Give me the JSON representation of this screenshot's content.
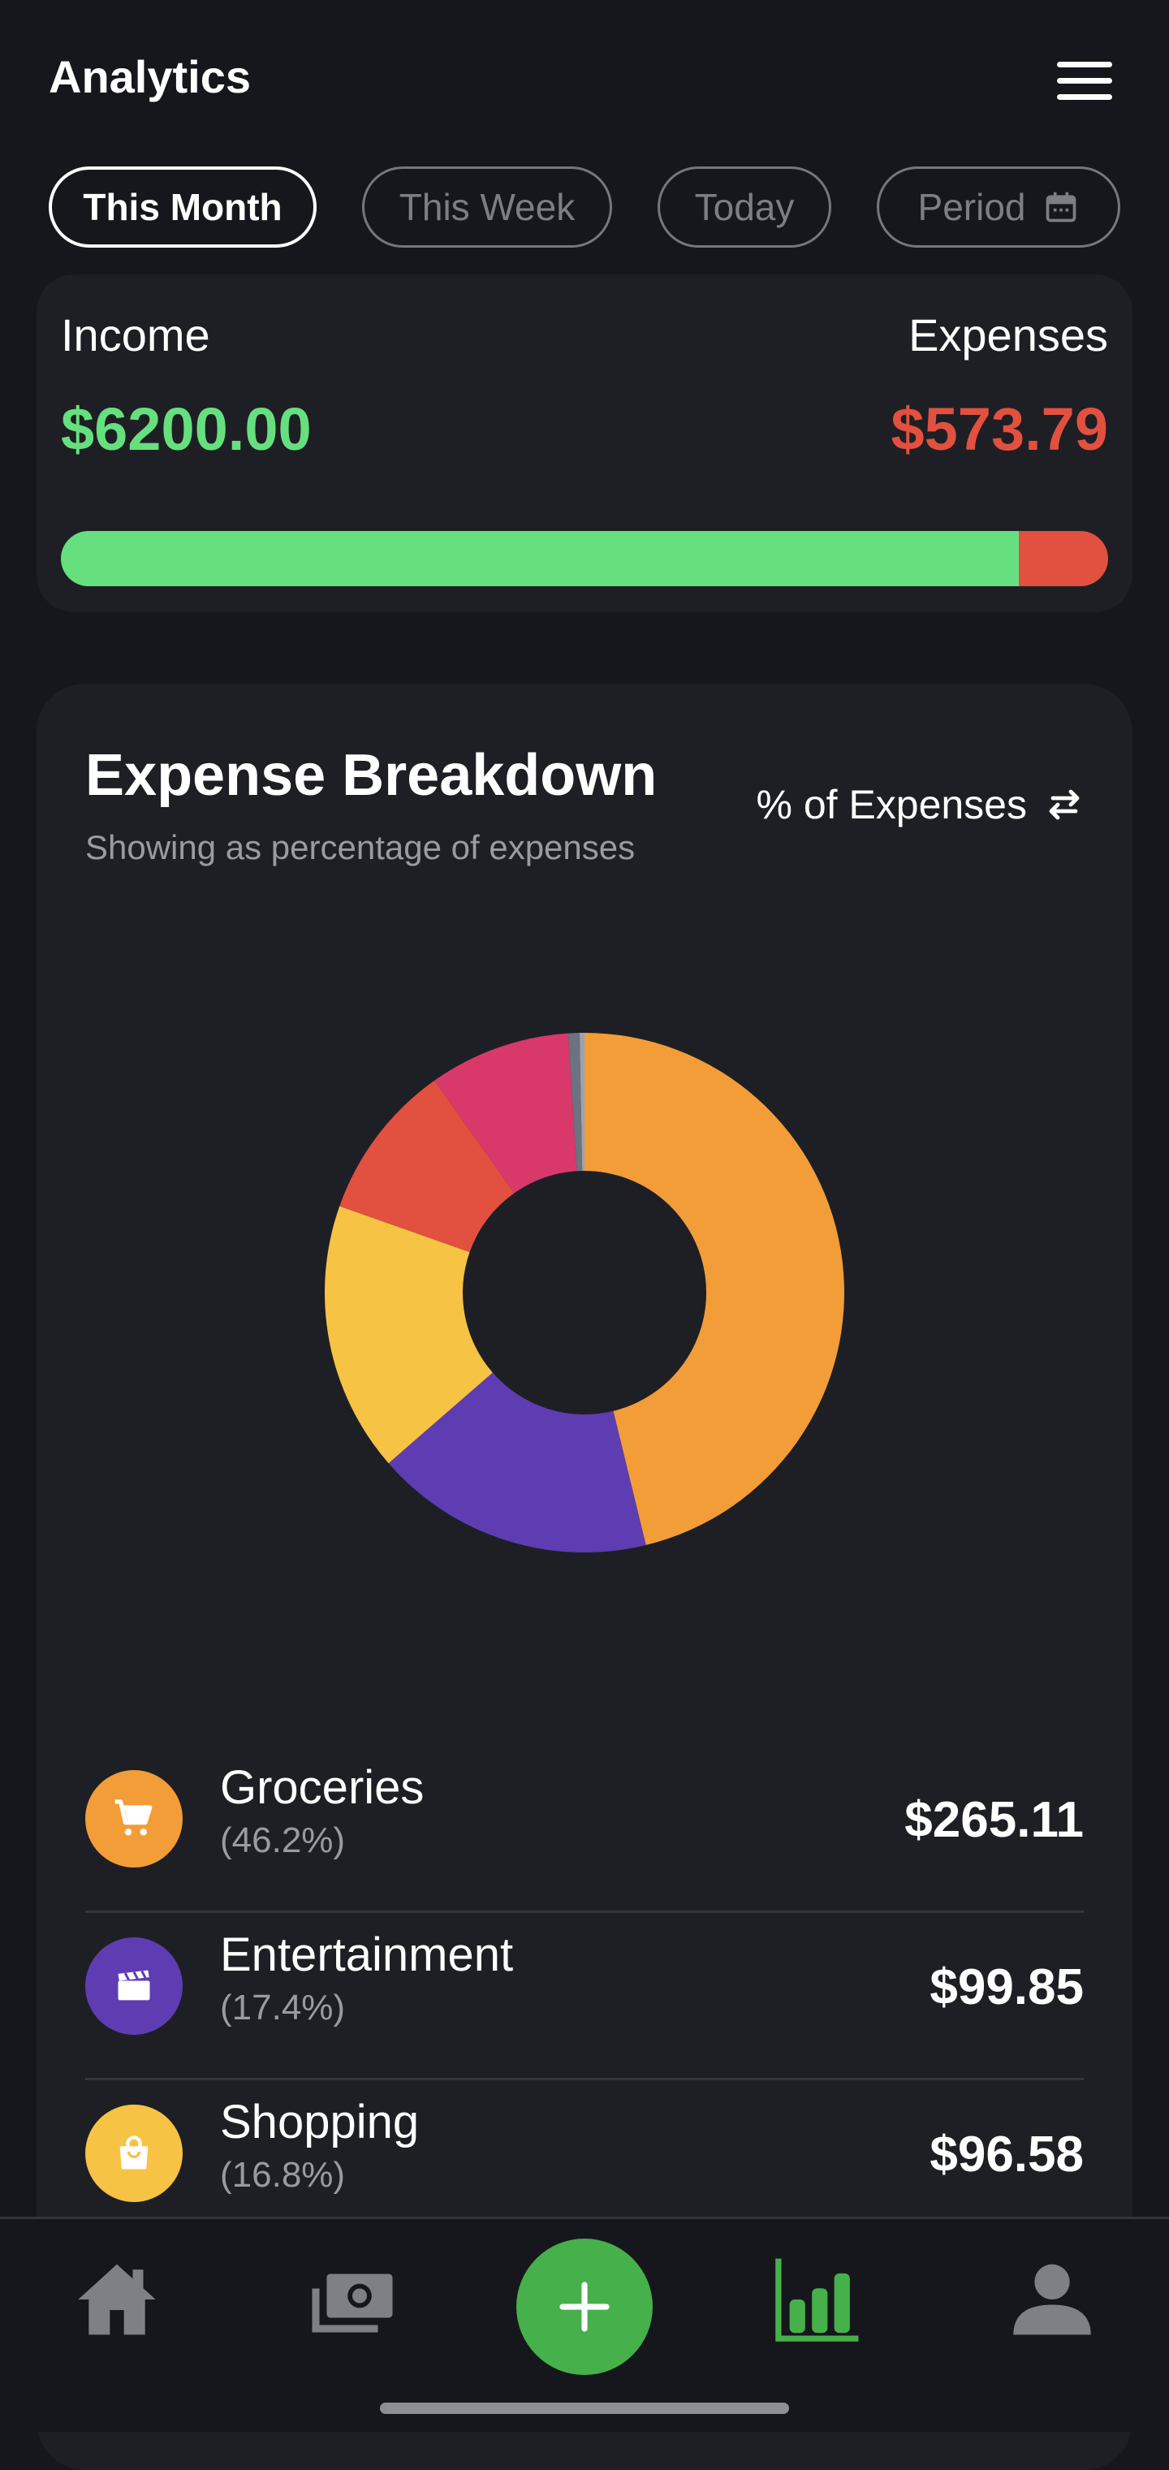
{
  "header": {
    "title": "Analytics",
    "menu_icon": "hamburger-menu-icon"
  },
  "filters": [
    {
      "label": "This Month",
      "active": true
    },
    {
      "label": "This Week",
      "active": false
    },
    {
      "label": "Today",
      "active": false
    },
    {
      "label": "Period",
      "active": false,
      "icon": "calendar-icon"
    }
  ],
  "summary": {
    "income_label": "Income",
    "income_value": "$6200.00",
    "expenses_label": "Expenses",
    "expenses_value": "$573.79",
    "income_share": 0.915,
    "colors": {
      "income": "#66e07e",
      "expenses": "#e2503f"
    }
  },
  "breakdown": {
    "title": "Expense Breakdown",
    "subtitle": "Showing as percentage of expenses",
    "toggle_label": "% of Expenses",
    "toggle_icon": "swap-arrows-icon"
  },
  "chart_data": {
    "type": "pie",
    "donut": true,
    "slices": [
      {
        "name": "Groceries",
        "value": 46.2,
        "color": "#f29d38"
      },
      {
        "name": "Entertainment",
        "value": 17.4,
        "color": "#5e3db3"
      },
      {
        "name": "Shopping",
        "value": 16.8,
        "color": "#f6c344"
      },
      {
        "name": "",
        "value": 9.8,
        "color": "#e2503f"
      },
      {
        "name": "",
        "value": 8.8,
        "color": "#d9386b"
      },
      {
        "name": "",
        "value": 0.7,
        "color": "#6b7280"
      },
      {
        "name": "",
        "value": 0.3,
        "color": "#9ca3af"
      }
    ]
  },
  "categories": [
    {
      "name": "Groceries",
      "percent": "(46.2%)",
      "amount": "$265.11",
      "color": "#f29d38",
      "icon": "cart-icon"
    },
    {
      "name": "Entertainment",
      "percent": "(17.4%)",
      "amount": "$99.85",
      "color": "#5e3db3",
      "icon": "clapperboard-icon"
    },
    {
      "name": "Shopping",
      "percent": "(16.8%)",
      "amount": "$96.58",
      "color": "#f6c344",
      "icon": "shopping-bag-icon"
    }
  ],
  "nav": {
    "items": [
      {
        "name": "home",
        "icon": "home-icon",
        "active": false
      },
      {
        "name": "transactions",
        "icon": "money-icon",
        "active": false
      },
      {
        "name": "add",
        "icon": "plus-icon",
        "active": false
      },
      {
        "name": "analytics",
        "icon": "bar-chart-icon",
        "active": true
      },
      {
        "name": "profile",
        "icon": "user-icon",
        "active": false
      }
    ],
    "accent": "#46b04a"
  }
}
